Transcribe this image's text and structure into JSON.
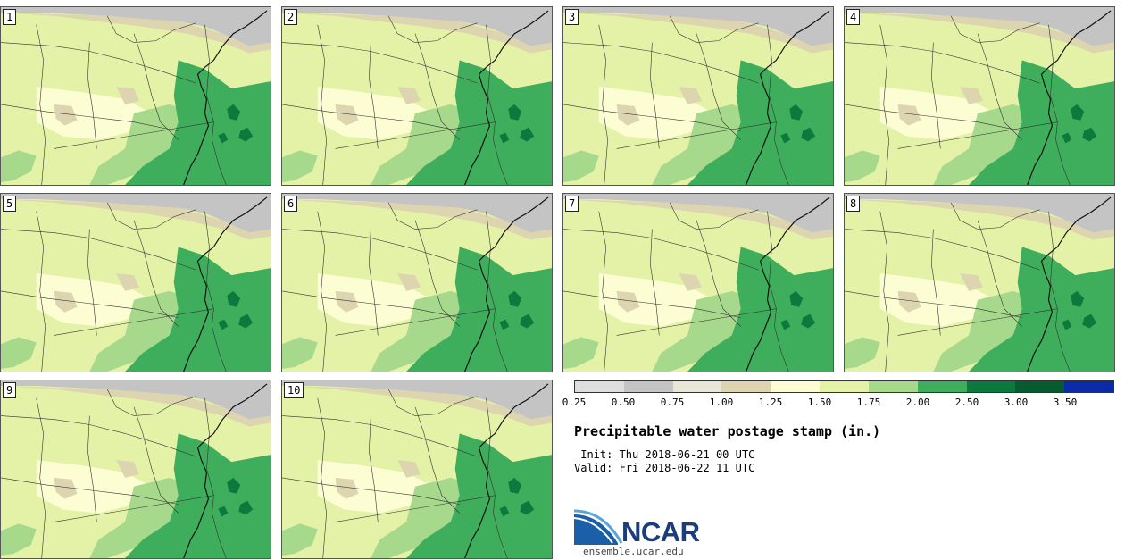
{
  "panels": [
    {
      "label": "1"
    },
    {
      "label": "2"
    },
    {
      "label": "3"
    },
    {
      "label": "4"
    },
    {
      "label": "5"
    },
    {
      "label": "6"
    },
    {
      "label": "7"
    },
    {
      "label": "8"
    },
    {
      "label": "9"
    },
    {
      "label": "10"
    }
  ],
  "colorbar": {
    "colors": [
      "#dedede",
      "#c4c4c4",
      "#e8e6d6",
      "#ddd4b0",
      "#fdfdd4",
      "#e4f2a8",
      "#a6d98c",
      "#3fae5c",
      "#0c7a3c",
      "#065c2e",
      "#0a2aa8"
    ],
    "labels": [
      "0.25",
      "0.50",
      "0.75",
      "1.00",
      "1.25",
      "1.50",
      "1.75",
      "2.00",
      "2.50",
      "3.00",
      "3.50"
    ]
  },
  "title": "Precipitable water postage stamp (in.)",
  "init_text": " Init: Thu 2018-06-21 00 UTC",
  "valid_text": "Valid: Fri 2018-06-22 11 UTC",
  "logo_text": "NCAR",
  "url": "ensemble.ucar.edu"
}
